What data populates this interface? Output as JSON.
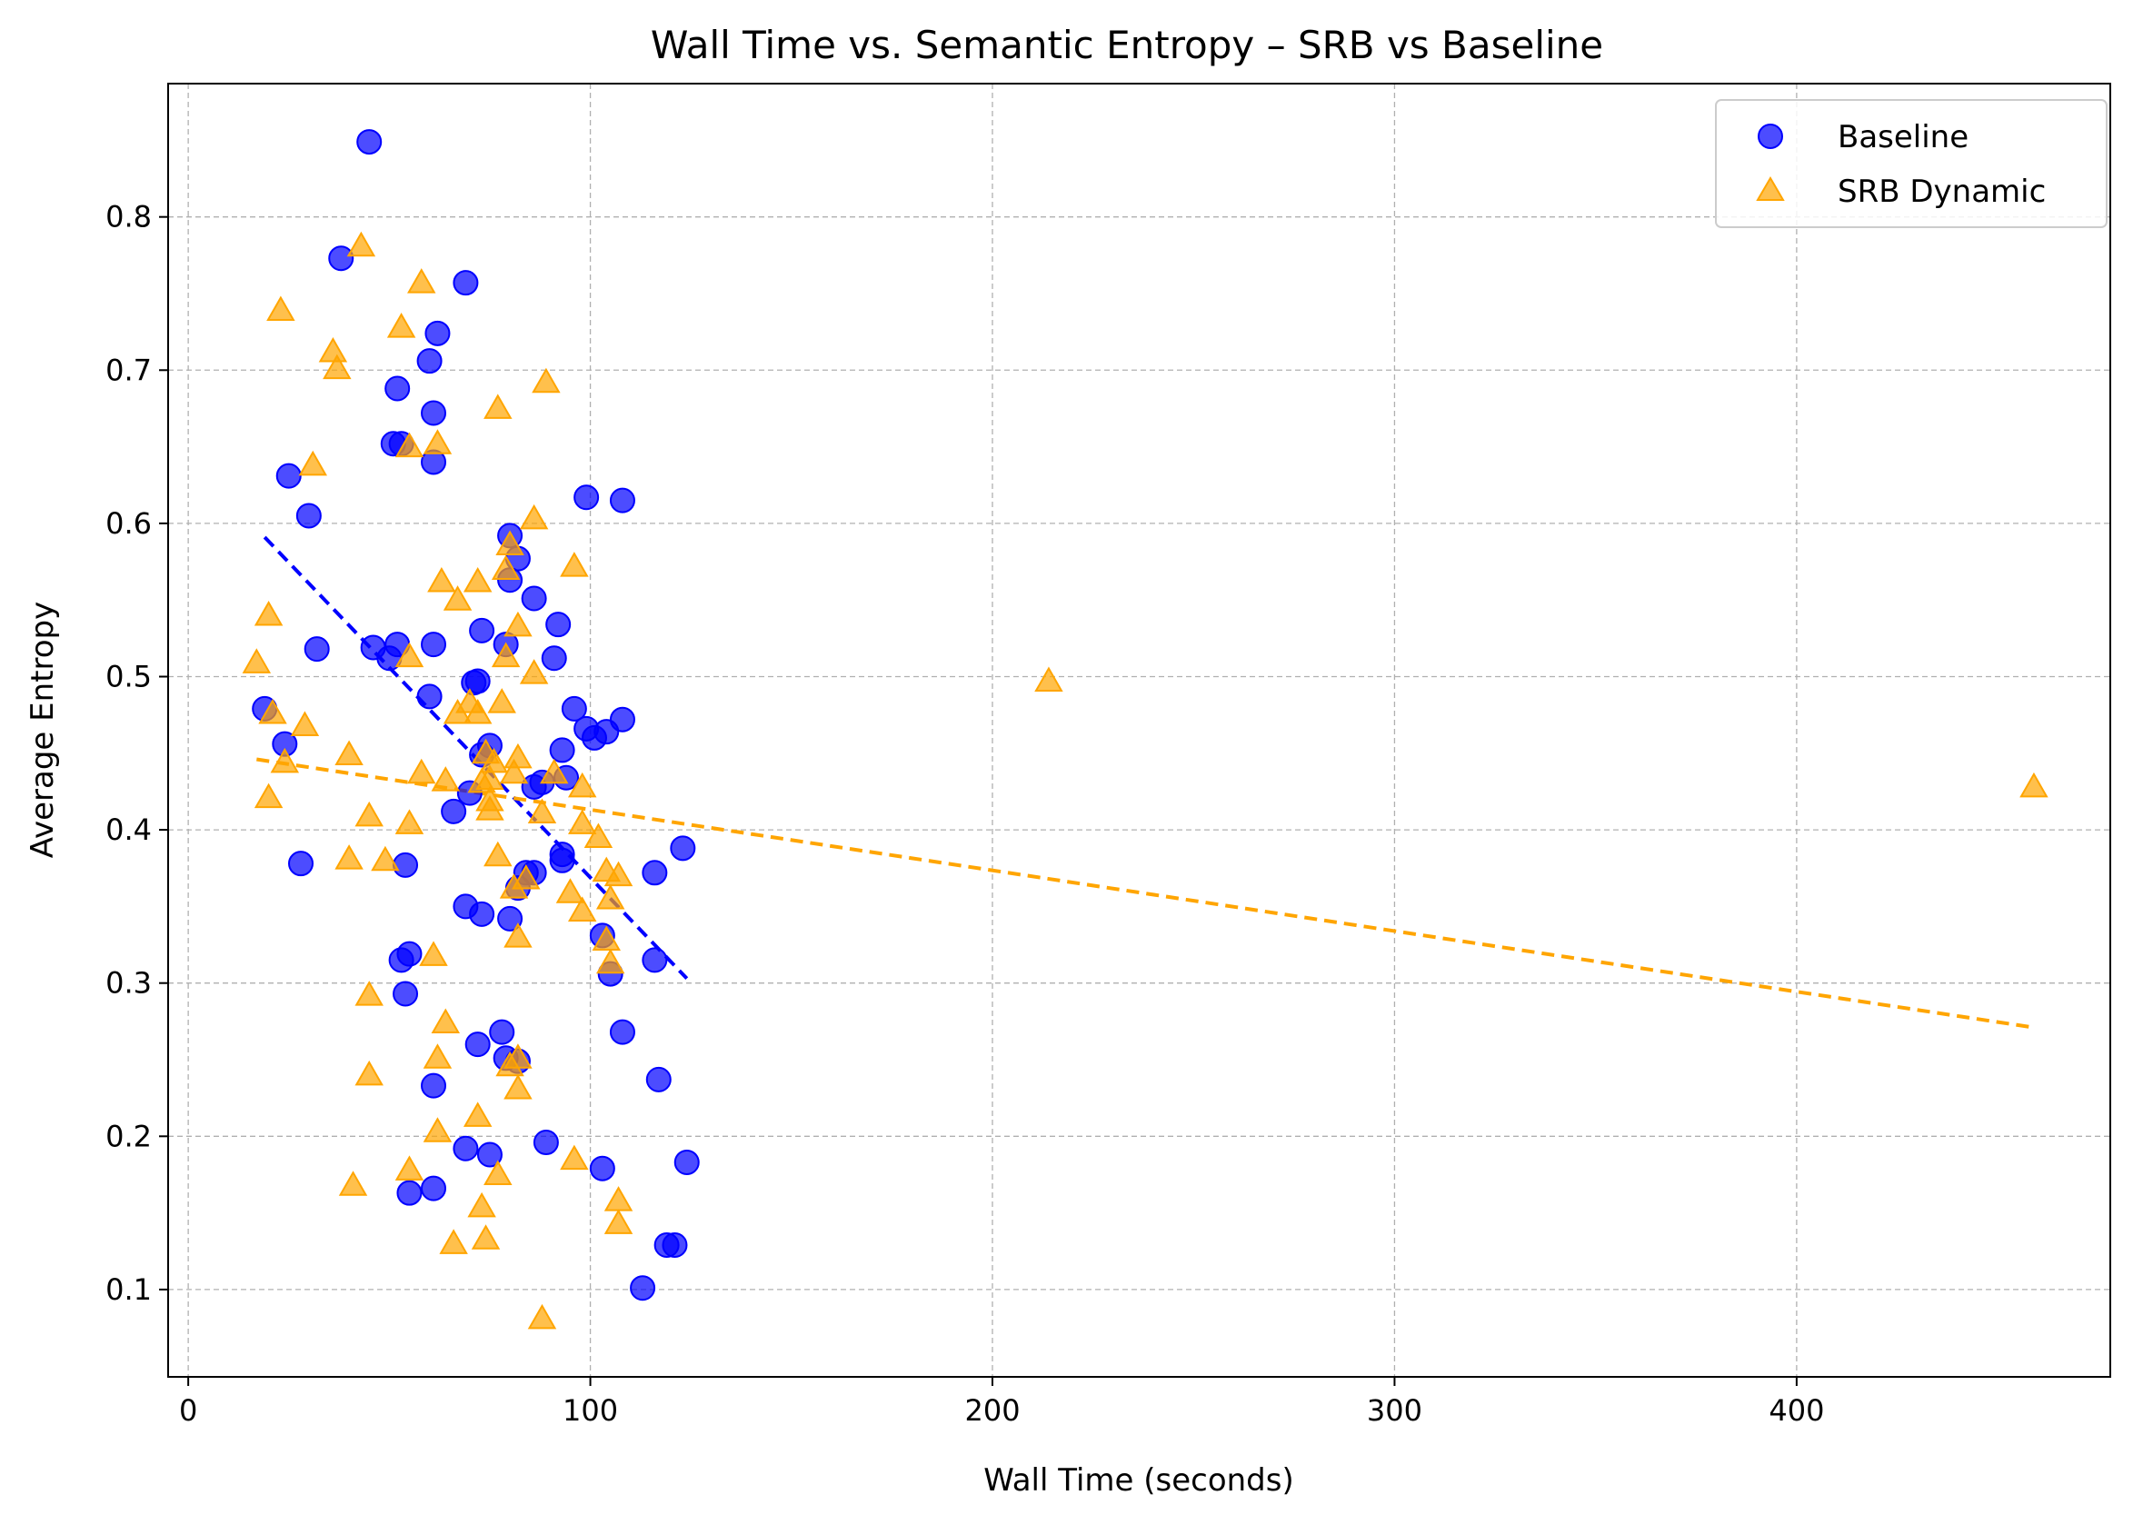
{
  "chart_data": {
    "type": "scatter",
    "title": "Wall Time vs. Semantic Entropy – SRB vs Baseline",
    "xlabel": "Wall Time (seconds)",
    "ylabel": "Average Entropy",
    "xlim": [
      -5,
      478
    ],
    "ylim": [
      0.043,
      0.887
    ],
    "xticks": [
      0,
      100,
      200,
      300,
      400
    ],
    "yticks": [
      0.1,
      0.2,
      0.3,
      0.4,
      0.5,
      0.6,
      0.7,
      0.8
    ],
    "xtick_labels": [
      "0",
      "100",
      "200",
      "300",
      "400"
    ],
    "ytick_labels": [
      "0.1",
      "0.2",
      "0.3",
      "0.4",
      "0.5",
      "0.6",
      "0.7",
      "0.8"
    ],
    "grid": true,
    "legend_position": "top-right",
    "series": [
      {
        "name": "Baseline",
        "marker": "circle",
        "color": "#0000ff",
        "points": [
          [
            45,
            0.849
          ],
          [
            38,
            0.773
          ],
          [
            69,
            0.757
          ],
          [
            62,
            0.724
          ],
          [
            60,
            0.706
          ],
          [
            52,
            0.688
          ],
          [
            61,
            0.672
          ],
          [
            51,
            0.652
          ],
          [
            53,
            0.652
          ],
          [
            61,
            0.64
          ],
          [
            25,
            0.631
          ],
          [
            30,
            0.605
          ],
          [
            99,
            0.617
          ],
          [
            108,
            0.615
          ],
          [
            80,
            0.592
          ],
          [
            82,
            0.577
          ],
          [
            80,
            0.563
          ],
          [
            86,
            0.551
          ],
          [
            92,
            0.534
          ],
          [
            73,
            0.53
          ],
          [
            32,
            0.518
          ],
          [
            46,
            0.519
          ],
          [
            52,
            0.521
          ],
          [
            61,
            0.521
          ],
          [
            79,
            0.521
          ],
          [
            50,
            0.512
          ],
          [
            91,
            0.512
          ],
          [
            71,
            0.496
          ],
          [
            72,
            0.497
          ],
          [
            60,
            0.487
          ],
          [
            19,
            0.479
          ],
          [
            96,
            0.479
          ],
          [
            99,
            0.466
          ],
          [
            104,
            0.464
          ],
          [
            108,
            0.472
          ],
          [
            101,
            0.46
          ],
          [
            24,
            0.456
          ],
          [
            75,
            0.455
          ],
          [
            93,
            0.452
          ],
          [
            73,
            0.449
          ],
          [
            94,
            0.434
          ],
          [
            88,
            0.431
          ],
          [
            86,
            0.428
          ],
          [
            70,
            0.424
          ],
          [
            66,
            0.412
          ],
          [
            28,
            0.378
          ],
          [
            54,
            0.377
          ],
          [
            84,
            0.372
          ],
          [
            86,
            0.372
          ],
          [
            93,
            0.384
          ],
          [
            93,
            0.38
          ],
          [
            116,
            0.372
          ],
          [
            123,
            0.388
          ],
          [
            69,
            0.35
          ],
          [
            73,
            0.345
          ],
          [
            80,
            0.342
          ],
          [
            82,
            0.362
          ],
          [
            103,
            0.331
          ],
          [
            105,
            0.306
          ],
          [
            55,
            0.319
          ],
          [
            53,
            0.315
          ],
          [
            54,
            0.293
          ],
          [
            116,
            0.315
          ],
          [
            108,
            0.268
          ],
          [
            78,
            0.268
          ],
          [
            79,
            0.251
          ],
          [
            72,
            0.26
          ],
          [
            82,
            0.249
          ],
          [
            61,
            0.233
          ],
          [
            117,
            0.237
          ],
          [
            89,
            0.196
          ],
          [
            69,
            0.192
          ],
          [
            75,
            0.188
          ],
          [
            103,
            0.179
          ],
          [
            124,
            0.183
          ],
          [
            61,
            0.166
          ],
          [
            55,
            0.163
          ],
          [
            119,
            0.129
          ],
          [
            121,
            0.129
          ],
          [
            113,
            0.101
          ]
        ]
      },
      {
        "name": "SRB Dynamic",
        "marker": "triangle",
        "color": "#ffa500",
        "points": [
          [
            43,
            0.781
          ],
          [
            58,
            0.757
          ],
          [
            23,
            0.739
          ],
          [
            53,
            0.728
          ],
          [
            36,
            0.712
          ],
          [
            37,
            0.701
          ],
          [
            89,
            0.692
          ],
          [
            77,
            0.675
          ],
          [
            62,
            0.652
          ],
          [
            55,
            0.65
          ],
          [
            31,
            0.638
          ],
          [
            86,
            0.603
          ],
          [
            80,
            0.586
          ],
          [
            96,
            0.572
          ],
          [
            79,
            0.57
          ],
          [
            63,
            0.562
          ],
          [
            72,
            0.562
          ],
          [
            67,
            0.55
          ],
          [
            20,
            0.54
          ],
          [
            82,
            0.533
          ],
          [
            17,
            0.509
          ],
          [
            55,
            0.513
          ],
          [
            79,
            0.513
          ],
          [
            86,
            0.502
          ],
          [
            214,
            0.497
          ],
          [
            78,
            0.483
          ],
          [
            70,
            0.483
          ],
          [
            67,
            0.476
          ],
          [
            72,
            0.476
          ],
          [
            21,
            0.476
          ],
          [
            29,
            0.468
          ],
          [
            74,
            0.45
          ],
          [
            76,
            0.444
          ],
          [
            40,
            0.449
          ],
          [
            82,
            0.447
          ],
          [
            24,
            0.444
          ],
          [
            58,
            0.437
          ],
          [
            81,
            0.437
          ],
          [
            91,
            0.437
          ],
          [
            75,
            0.433
          ],
          [
            64,
            0.432
          ],
          [
            73,
            0.431
          ],
          [
            98,
            0.428
          ],
          [
            459,
            0.428
          ],
          [
            20,
            0.421
          ],
          [
            75,
            0.419
          ],
          [
            88,
            0.411
          ],
          [
            75,
            0.413
          ],
          [
            45,
            0.409
          ],
          [
            55,
            0.404
          ],
          [
            98,
            0.404
          ],
          [
            102,
            0.395
          ],
          [
            40,
            0.381
          ],
          [
            49,
            0.38
          ],
          [
            77,
            0.383
          ],
          [
            104,
            0.373
          ],
          [
            107,
            0.37
          ],
          [
            84,
            0.368
          ],
          [
            81,
            0.362
          ],
          [
            95,
            0.359
          ],
          [
            105,
            0.355
          ],
          [
            98,
            0.347
          ],
          [
            82,
            0.33
          ],
          [
            104,
            0.328
          ],
          [
            61,
            0.318
          ],
          [
            105,
            0.313
          ],
          [
            45,
            0.292
          ],
          [
            64,
            0.274
          ],
          [
            62,
            0.251
          ],
          [
            82,
            0.251
          ],
          [
            80,
            0.246
          ],
          [
            45,
            0.24
          ],
          [
            82,
            0.231
          ],
          [
            72,
            0.213
          ],
          [
            62,
            0.203
          ],
          [
            96,
            0.185
          ],
          [
            55,
            0.178
          ],
          [
            77,
            0.175
          ],
          [
            41,
            0.168
          ],
          [
            107,
            0.158
          ],
          [
            73,
            0.154
          ],
          [
            107,
            0.143
          ],
          [
            74,
            0.133
          ],
          [
            66,
            0.13
          ],
          [
            88,
            0.081
          ]
        ]
      }
    ],
    "trendlines": [
      {
        "series": "Baseline",
        "color": "#0000ff",
        "x": [
          19,
          124
        ],
        "y": [
          0.591,
          0.303
        ]
      },
      {
        "series": "SRB Dynamic",
        "color": "#ffa500",
        "x": [
          17,
          459
        ],
        "y": [
          0.446,
          0.271
        ]
      }
    ]
  }
}
